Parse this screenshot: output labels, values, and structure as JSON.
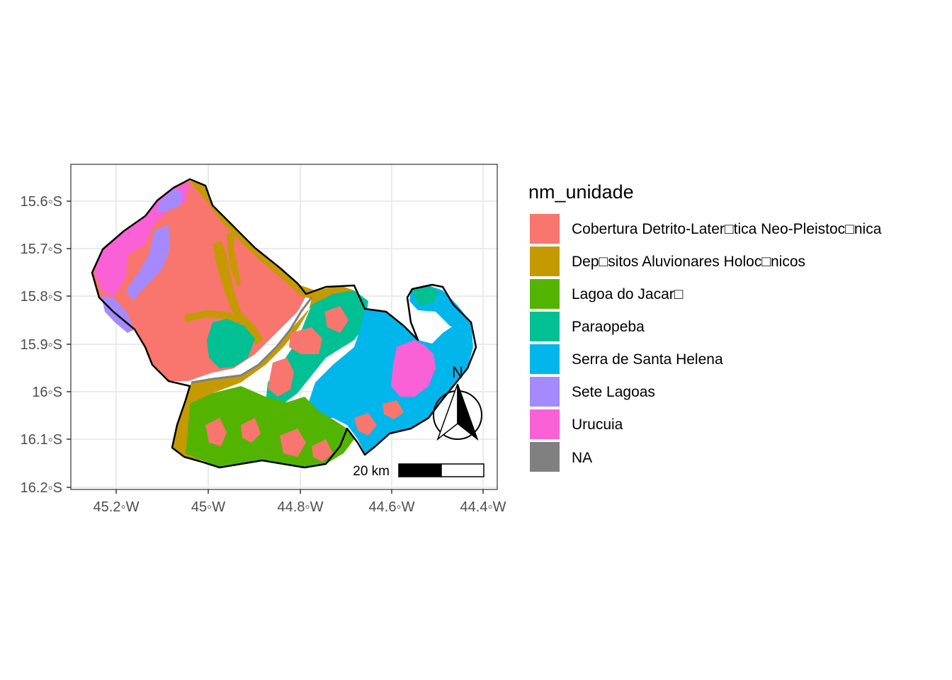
{
  "map": {
    "x_ticks": [
      "45.2◦W",
      "45◦W",
      "44.8◦W",
      "44.6◦W",
      "44.4◦W"
    ],
    "y_ticks": [
      "15.6◦S",
      "15.7◦S",
      "15.8◦S",
      "15.9◦S",
      "16◦S",
      "16.1◦S",
      "16.2◦S"
    ],
    "scale_bar": {
      "label": "20 km"
    },
    "north_arrow": {
      "label": "N"
    }
  },
  "legend": {
    "title": "nm_unidade",
    "items": [
      {
        "label": "Cobertura Detrito-Later□tica Neo-Pleistoc□nica",
        "color": "#F8766D"
      },
      {
        "label": "Dep□sitos Aluvionares Holoc□nicos",
        "color": "#C49A00"
      },
      {
        "label": "Lagoa do Jacar□",
        "color": "#53B400"
      },
      {
        "label": "Paraopeba",
        "color": "#00C094"
      },
      {
        "label": "Serra de Santa Helena",
        "color": "#00B6EB"
      },
      {
        "label": "Sete Lagoas",
        "color": "#A58AFF"
      },
      {
        "label": "Urucuia",
        "color": "#FB61D7"
      },
      {
        "label": "NA",
        "color": "#808080"
      }
    ]
  }
}
